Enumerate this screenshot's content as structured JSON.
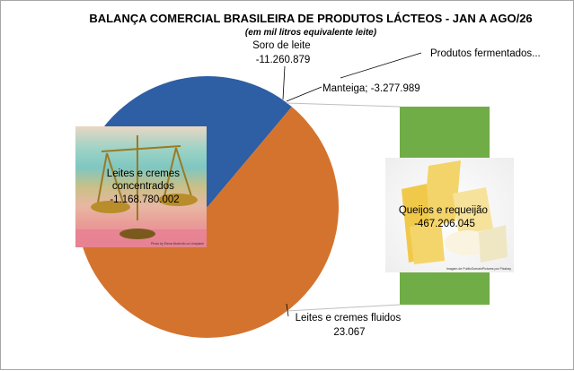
{
  "chart_data": {
    "type": "pie",
    "title": "BALANÇA COMERCIAL BRASILEIRA DE PRODUTOS LÁCTEOS - JAN A AGO/26",
    "subtitle": "(em mil litros equivalente leite)",
    "slices": [
      {
        "name": "Leites e cremes concentrados",
        "value": -1168780002,
        "label_lines": [
          "Leites e cremes",
          "concentrados",
          "-1.168.780.002"
        ],
        "color": "#d4732e"
      },
      {
        "name": "Soro de leite",
        "value": -11260879,
        "label_lines": [
          "Soro de leite",
          "-11.260.879"
        ],
        "color": "#3d78c0"
      },
      {
        "name": "Manteiga",
        "value": -3277989,
        "label_lines": [
          "Manteiga; -3.277.989"
        ],
        "color": "#e8a317"
      },
      {
        "name": "Produtos fermentados",
        "value": null,
        "label_lines": [
          "Produtos  fermentados..."
        ],
        "color": "#7a9c3c"
      },
      {
        "name": "Queijos e requeijão",
        "value": -467206045,
        "label_lines": [
          "Queijos  e requeijão",
          "-467.206.045"
        ],
        "color": "#2e5ea3"
      },
      {
        "name": "Leites e cremes fluidos",
        "value": 23067,
        "label_lines": [
          "Leites e cremes fluidos",
          "23.067"
        ],
        "color": "#d4732e"
      }
    ],
    "segment_degrees": [
      {
        "name": "Leites e cremes concentrados",
        "start": 180,
        "end": 290.5,
        "color": "#d4732e"
      },
      {
        "name": "Soro de leite",
        "start": 290.5,
        "end": 293.5,
        "color": "#e8a317"
      },
      {
        "name": "Queijos e requeijão",
        "start": 293.5,
        "end": 400,
        "color": "#2e5ea3"
      },
      {
        "name": "Leites e cremes concentrados",
        "start": 400,
        "end": 540,
        "color": "#d4732e"
      }
    ],
    "bar_of_pie": {
      "color": "#70ad47"
    },
    "legend": "none"
  },
  "images": {
    "left": {
      "name": "balance-scale-photo",
      "credit": "Photo by Elena Mozhvilo on Unsplash"
    },
    "right": {
      "name": "cheese-photo",
      "credit": "Imagem de PublicDomainPictures por Pixabay"
    }
  }
}
